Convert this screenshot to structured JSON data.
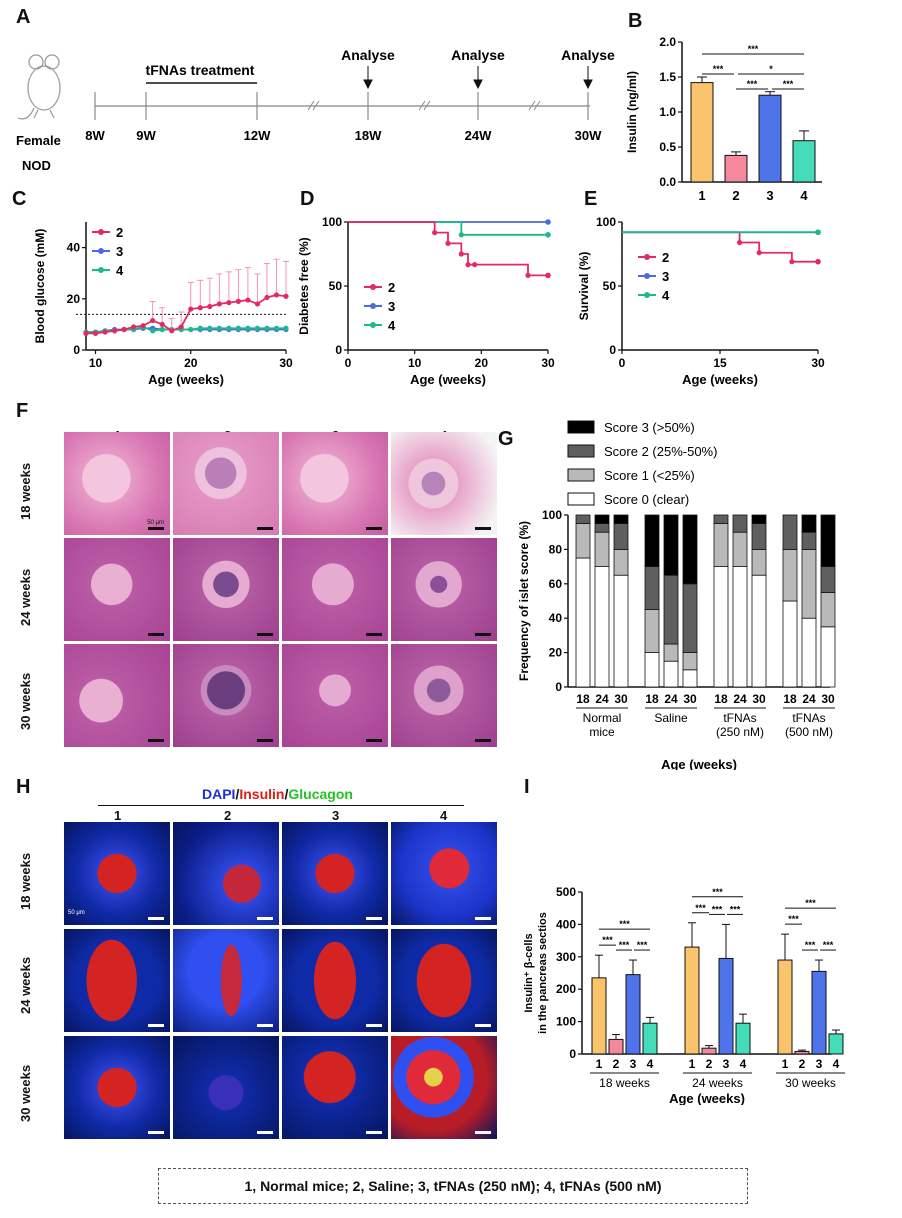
{
  "panels": {
    "a": "A",
    "b": "B",
    "c": "C",
    "d": "D",
    "e": "E",
    "f": "F",
    "g": "G",
    "h": "H",
    "i": "I"
  },
  "timeline": {
    "mouse_line1": "Female",
    "mouse_line2": "NOD",
    "treatment": "tFNAs treatment",
    "analyse": "Analyse",
    "ticks": [
      "8W",
      "9W",
      "12W",
      "18W",
      "24W",
      "30W"
    ]
  },
  "row_labels": {
    "w18": "18 weeks",
    "w24": "24 weeks",
    "w30": "30 weeks"
  },
  "col_labels": [
    "1",
    "2",
    "3",
    "4"
  ],
  "scale_text": "50 μm",
  "stain": {
    "dapi": "DAPI",
    "sep1": "/",
    "insulin": "Insulin",
    "sep2": "/",
    "glucagon": "Glucagon"
  },
  "footer": "1, Normal mice; 2, Saline; 3, tFNAs (250 nM); 4, tFNAs (500 nM)",
  "colors": {
    "g1": "#f9c46b",
    "g2": "#f4889d",
    "g3": "#4f73e8",
    "g4": "#44dcb9",
    "line2": "#e32a63",
    "line3": "#4a6ae0",
    "line4": "#1cb98b"
  },
  "chart_data": [
    {
      "id": "B",
      "type": "bar",
      "categories": [
        "1",
        "2",
        "3",
        "4"
      ],
      "values": [
        1.42,
        0.38,
        1.24,
        0.59
      ],
      "errors": [
        0.08,
        0.05,
        0.05,
        0.14
      ],
      "ylabel": "Insulin (ng/ml)",
      "ylim": [
        0,
        2.0
      ],
      "yticks": [
        "0.0",
        "0.5",
        "1.0",
        "1.5",
        "2.0"
      ],
      "significance": [
        "***",
        "***",
        "*",
        "***",
        "***"
      ]
    },
    {
      "id": "C",
      "type": "line",
      "xlabel": "Age (weeks)",
      "ylabel": "Blood glucose (mM)",
      "xlim": [
        9,
        30
      ],
      "ylim": [
        0,
        50
      ],
      "xticks": [
        "10",
        "20",
        "30"
      ],
      "yticks": [
        "0",
        "20",
        "40"
      ],
      "threshold": 13.9,
      "series": [
        {
          "name": "2",
          "x": [
            9,
            10,
            11,
            12,
            13,
            14,
            15,
            16,
            17,
            18,
            19,
            20,
            21,
            22,
            23,
            24,
            25,
            26,
            27,
            28,
            29,
            30
          ],
          "y": [
            6.5,
            6.5,
            7,
            7.5,
            8,
            9,
            9.5,
            11.5,
            10,
            7.5,
            9,
            16,
            16.5,
            17,
            18,
            18.5,
            19,
            19.5,
            18,
            20.5,
            21.5,
            21
          ]
        },
        {
          "name": "3",
          "x": [
            9,
            10,
            11,
            12,
            13,
            14,
            15,
            16,
            17,
            18,
            19,
            20,
            21,
            22,
            23,
            24,
            25,
            26,
            27,
            28,
            29,
            30
          ],
          "y": [
            7,
            7,
            7.5,
            8,
            8,
            8,
            8.5,
            8.5,
            8,
            8,
            8,
            8,
            8,
            8,
            8,
            8,
            8,
            8,
            8,
            8,
            8,
            8
          ]
        },
        {
          "name": "4",
          "x": [
            9,
            10,
            11,
            12,
            13,
            14,
            15,
            16,
            17,
            18,
            19,
            20,
            21,
            22,
            23,
            24,
            25,
            26,
            27,
            28,
            29,
            30
          ],
          "y": [
            7,
            7,
            7.5,
            7.5,
            8,
            8,
            9,
            7.5,
            8,
            8,
            8,
            8,
            8.5,
            8.5,
            8.5,
            8.5,
            8.5,
            8.5,
            8.5,
            8.5,
            8.5,
            8.5
          ]
        }
      ]
    },
    {
      "id": "D",
      "type": "line",
      "xlabel": "Age (weeks)",
      "ylabel": "Diabetes free (%)",
      "xlim": [
        0,
        30
      ],
      "ylim": [
        0,
        100
      ],
      "xticks": [
        "0",
        "10",
        "20",
        "30"
      ],
      "yticks": [
        "0",
        "50",
        "100"
      ],
      "series": [
        {
          "name": "2",
          "x": [
            0,
            13,
            13,
            15,
            15,
            17,
            17,
            18,
            18,
            19,
            19,
            27,
            27,
            30
          ],
          "y": [
            100,
            100,
            91.7,
            91.7,
            83.3,
            83.3,
            75,
            75,
            66.7,
            66.7,
            66.7,
            66.7,
            58.3,
            58.3
          ]
        },
        {
          "name": "3",
          "x": [
            0,
            30
          ],
          "y": [
            100,
            100
          ]
        },
        {
          "name": "4",
          "x": [
            0,
            17,
            17,
            30
          ],
          "y": [
            100,
            100,
            90,
            90
          ]
        }
      ]
    },
    {
      "id": "E",
      "type": "line",
      "xlabel": "Age (weeks)",
      "ylabel": "Survival (%)",
      "xlim": [
        0,
        30
      ],
      "ylim": [
        0,
        100
      ],
      "xticks": [
        "0",
        "15",
        "30"
      ],
      "yticks": [
        "0",
        "50",
        "100"
      ],
      "series": [
        {
          "name": "2",
          "x": [
            0,
            18,
            18,
            21,
            21,
            26,
            26,
            30
          ],
          "y": [
            92,
            92,
            84,
            84,
            76,
            76,
            69,
            69
          ]
        },
        {
          "name": "3",
          "x": [
            0,
            30
          ],
          "y": [
            92,
            92
          ]
        },
        {
          "name": "4",
          "x": [
            0,
            30
          ],
          "y": [
            92,
            92
          ]
        }
      ]
    },
    {
      "id": "G",
      "type": "bar",
      "stacked": true,
      "ylabel": "Frequency of islet score (%)",
      "xlabel": "Age (weeks)",
      "ylim": [
        0,
        100
      ],
      "yticks": [
        "0",
        "20",
        "40",
        "60",
        "80",
        "100"
      ],
      "categories": [
        "18",
        "24",
        "30",
        "18",
        "24",
        "30",
        "18",
        "24",
        "30",
        "18",
        "24",
        "30"
      ],
      "groups": [
        {
          "name": [
            "Normal",
            "mice"
          ]
        },
        {
          "name": [
            "Saline"
          ]
        },
        {
          "name": [
            "tFNAs",
            "(250 nM)"
          ]
        },
        {
          "name": [
            "tFNAs",
            "(500 nM)"
          ]
        }
      ],
      "series": [
        {
          "name": "Score 0 (clear)",
          "color": "#ffffff",
          "values": [
            75,
            70,
            65,
            20,
            15,
            10,
            70,
            70,
            65,
            50,
            40,
            35
          ]
        },
        {
          "name": "Score 1 (<25%)",
          "color": "#b9b9b9",
          "values": [
            20,
            20,
            15,
            25,
            10,
            10,
            25,
            20,
            15,
            30,
            40,
            20
          ]
        },
        {
          "name": "Score 2 (25%-50%)",
          "color": "#5f5f5f",
          "values": [
            5,
            5,
            15,
            25,
            40,
            40,
            5,
            10,
            15,
            20,
            10,
            15
          ]
        },
        {
          "name": "Score 3 (>50%)",
          "color": "#000000",
          "values": [
            0,
            5,
            5,
            30,
            35,
            40,
            0,
            0,
            5,
            0,
            10,
            30
          ]
        }
      ]
    },
    {
      "id": "I",
      "type": "bar",
      "ylabel": "Insulin⁺ β-cells in the pancreas sectios",
      "xlabel": "Age (weeks)",
      "ylim": [
        0,
        500
      ],
      "yticks": [
        "0",
        "100",
        "200",
        "300",
        "400",
        "500"
      ],
      "groups": [
        "18 weeks",
        "24 weeks",
        "30 weeks"
      ],
      "categories": [
        "1",
        "2",
        "3",
        "4"
      ],
      "values": [
        [
          235,
          45,
          245,
          95
        ],
        [
          330,
          18,
          295,
          95
        ],
        [
          290,
          8,
          255,
          62
        ]
      ],
      "errors": [
        [
          70,
          15,
          45,
          18
        ],
        [
          75,
          8,
          105,
          28
        ],
        [
          80,
          4,
          35,
          12
        ]
      ],
      "significance": [
        "***",
        "***",
        "***"
      ]
    }
  ]
}
